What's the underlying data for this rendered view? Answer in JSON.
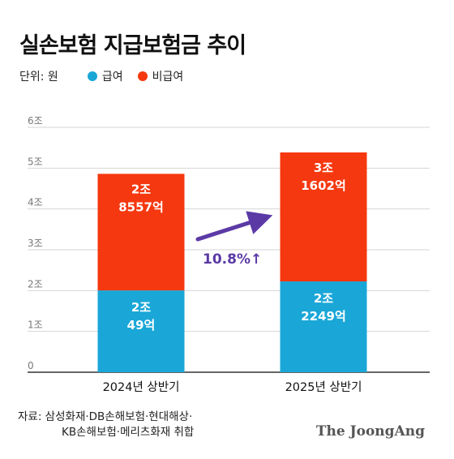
{
  "title": "실손보험 지급보험금 추이",
  "unit_label": "단위: 원",
  "legend": [
    {
      "label": "급여",
      "color": "#1aa7d8"
    },
    {
      "label": "비급여",
      "color": "#f5380f"
    }
  ],
  "source_lines": [
    "자료: 삼성화재·DB손해보험·현대해상·",
    "KB손해보험·메리츠화재 취합"
  ],
  "brand": "The JoongAng",
  "chart_data": {
    "type": "bar",
    "stacked": true,
    "categories": [
      "2024년 상반기",
      "2025년 상반기"
    ],
    "ylim": [
      0,
      6
    ],
    "yticks": [
      "0",
      "1조",
      "2조",
      "3조",
      "4조",
      "5조",
      "6조"
    ],
    "grid": true,
    "series": [
      {
        "name": "급여",
        "color": "#1aa7d8",
        "values": [
          2.0049,
          2.2249
        ],
        "labels": [
          "2조\n49억",
          "2조\n2249억"
        ]
      },
      {
        "name": "비급여",
        "color": "#f5380f",
        "values": [
          2.8557,
          3.1602
        ],
        "labels": [
          "2조\n8557억",
          "3조\n1602억"
        ]
      }
    ],
    "annotation": {
      "text": "10.8%↑",
      "color": "#5b3aa6"
    }
  }
}
